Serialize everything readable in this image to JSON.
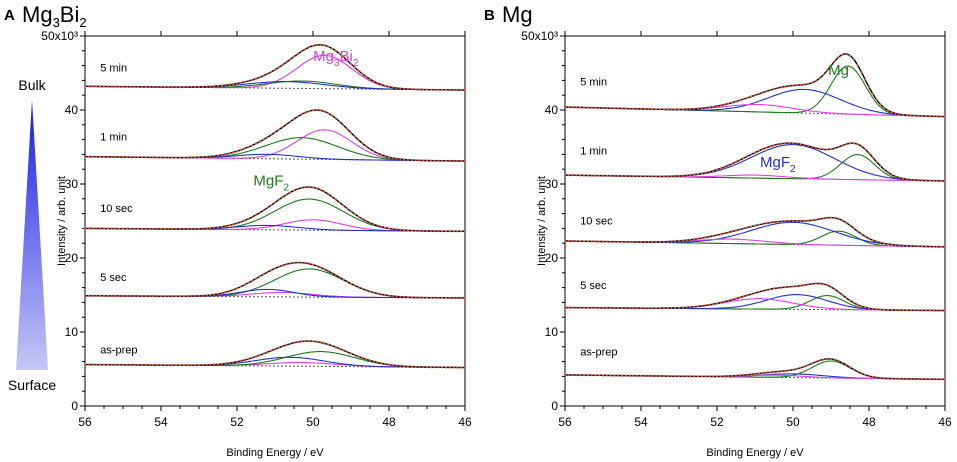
{
  "colors": {
    "data": "#d2553c",
    "envelope": "#000000",
    "mg3bi2": "#e040e0",
    "mgf2": "#1f7a1f",
    "blue": "#2233cc",
    "background": "#555555",
    "gradient_dark": "#1a1ae6",
    "gradient_light": "#c4c8f5"
  },
  "depth_indicator": {
    "top_label": "Bulk",
    "bottom_label": "Surface"
  },
  "chart_data": [
    {
      "type": "line",
      "panel_letter": "A",
      "title": "Mg3Bi2",
      "title_main": "Mg",
      "title_sub1": "3",
      "title_mid": "Bi",
      "title_sub2": "2",
      "xlabel": "Binding Energy / eV",
      "ylabel": "Intensity / arb. unit",
      "xlim": [
        56,
        46
      ],
      "ylim": [
        0,
        50
      ],
      "x_ticks": [
        "56",
        "54",
        "52",
        "50",
        "48",
        "46"
      ],
      "x_tick_values": [
        56,
        54,
        52,
        50,
        48,
        46
      ],
      "y_ticks": [
        "0",
        "10",
        "20",
        "30",
        "40",
        "50x10³"
      ],
      "y_tick_values": [
        0,
        10,
        20,
        30,
        40,
        50
      ],
      "annotations": [
        {
          "main": "Mg",
          "sub1": "3",
          "mid": "Bi",
          "sub2": "2",
          "color": "mg3bi2",
          "x": 49.4,
          "y": 46.6
        },
        {
          "main": "MgF",
          "sub1": "2",
          "mid": "",
          "sub2": "",
          "color": "mgf2",
          "x": 51.1,
          "y": 29.8
        }
      ],
      "traces": [
        {
          "label": "5 min",
          "label_x": 55.6,
          "label_y": 45.2,
          "bg_start": 43.2,
          "bg_end": 42.7,
          "components": [
            {
              "name": "Mg3Bi2",
              "color": "mg3bi2",
              "center": 49.7,
              "height": 4.5,
              "sigma": 0.72
            },
            {
              "name": "MgF2",
              "color": "mgf2",
              "center": 50.3,
              "height": 1.0,
              "sigma": 0.9
            },
            {
              "name": "blue",
              "color": "blue",
              "center": 50.7,
              "height": 0.9,
              "sigma": 1.0
            }
          ]
        },
        {
          "label": "1 min",
          "label_x": 55.6,
          "label_y": 35.9,
          "bg_start": 33.7,
          "bg_end": 33.1,
          "components": [
            {
              "name": "Mg3Bi2",
              "color": "mg3bi2",
              "center": 49.7,
              "height": 4.0,
              "sigma": 0.72
            },
            {
              "name": "MgF2",
              "color": "mgf2",
              "center": 50.3,
              "height": 2.9,
              "sigma": 0.95
            },
            {
              "name": "blue",
              "color": "blue",
              "center": 51.2,
              "height": 0.6,
              "sigma": 0.8
            }
          ]
        },
        {
          "label": "10 sec",
          "label_x": 55.6,
          "label_y": 26.2,
          "bg_start": 24.0,
          "bg_end": 23.6,
          "components": [
            {
              "name": "Mg3Bi2",
              "color": "mg3bi2",
              "center": 50.0,
              "height": 1.4,
              "sigma": 0.75
            },
            {
              "name": "MgF2",
              "color": "mgf2",
              "center": 50.1,
              "height": 4.2,
              "sigma": 0.9
            },
            {
              "name": "blue",
              "color": "blue",
              "center": 51.2,
              "height": 0.6,
              "sigma": 0.8
            }
          ]
        },
        {
          "label": "5 sec",
          "label_x": 55.6,
          "label_y": 16.9,
          "bg_start": 14.9,
          "bg_end": 14.6,
          "components": [
            {
              "name": "Mg3Bi2",
              "color": "mg3bi2",
              "center": 50.8,
              "height": 0.6,
              "sigma": 0.8
            },
            {
              "name": "MgF2",
              "color": "mgf2",
              "center": 50.1,
              "height": 3.8,
              "sigma": 0.9
            },
            {
              "name": "blue",
              "color": "blue",
              "center": 51.2,
              "height": 1.0,
              "sigma": 0.7
            }
          ]
        },
        {
          "label": "as-prep",
          "label_x": 55.6,
          "label_y": 7.1,
          "bg_start": 5.6,
          "bg_end": 5.2,
          "components": [
            {
              "name": "Mg3Bi2",
              "color": "mg3bi2",
              "center": 50.3,
              "height": 0.5,
              "sigma": 0.9
            },
            {
              "name": "MgF2",
              "color": "mgf2",
              "center": 49.8,
              "height": 2.0,
              "sigma": 0.9
            },
            {
              "name": "blue",
              "color": "blue",
              "center": 50.6,
              "height": 1.2,
              "sigma": 0.9
            }
          ]
        }
      ]
    },
    {
      "type": "line",
      "panel_letter": "B",
      "title": "Mg",
      "title_main": "Mg",
      "title_sub1": "",
      "title_mid": "",
      "title_sub2": "",
      "xlabel": "Binding Energy / eV",
      "ylabel": "Intensity / arb. unit",
      "xlim": [
        56,
        46
      ],
      "ylim": [
        0,
        50
      ],
      "x_ticks": [
        "56",
        "54",
        "52",
        "50",
        "48",
        "46"
      ],
      "x_tick_values": [
        56,
        54,
        52,
        50,
        48,
        46
      ],
      "y_ticks": [
        "0",
        "10",
        "20",
        "30",
        "40",
        "50x10³"
      ],
      "y_tick_values": [
        0,
        10,
        20,
        30,
        40,
        50
      ],
      "annotations": [
        {
          "main": "Mg",
          "sub1": "",
          "mid": "",
          "sub2": "",
          "color": "mgf2",
          "x": 48.8,
          "y": 44.7
        },
        {
          "main": "MgF",
          "sub1": "2",
          "mid": "",
          "sub2": "",
          "color": "blue",
          "x": 50.4,
          "y": 32.3
        }
      ],
      "traces": [
        {
          "label": "5 min",
          "label_x": 55.6,
          "label_y": 43.3,
          "bg_start": 40.4,
          "bg_end": 39.1,
          "components": [
            {
              "name": "Mg",
              "color": "mgf2",
              "center": 48.55,
              "height": 6.5,
              "sigma": 0.45
            },
            {
              "name": "MgF2",
              "color": "blue",
              "center": 49.7,
              "height": 3.2,
              "sigma": 0.95
            },
            {
              "name": "Mg3Bi2",
              "color": "mg3bi2",
              "center": 50.9,
              "height": 1.0,
              "sigma": 0.9
            }
          ]
        },
        {
          "label": "1 min",
          "label_x": 55.6,
          "label_y": 34.0,
          "bg_start": 31.2,
          "bg_end": 30.4,
          "components": [
            {
              "name": "Mg",
              "color": "mgf2",
              "center": 48.3,
              "height": 3.4,
              "sigma": 0.45
            },
            {
              "name": "MgF2",
              "color": "blue",
              "center": 50.0,
              "height": 4.6,
              "sigma": 1.1
            },
            {
              "name": "Mg3Bi2",
              "color": "mg3bi2",
              "center": 51.0,
              "height": 0.4,
              "sigma": 0.8
            }
          ]
        },
        {
          "label": "10 sec",
          "label_x": 55.6,
          "label_y": 24.5,
          "bg_start": 22.3,
          "bg_end": 21.5,
          "components": [
            {
              "name": "Mg",
              "color": "mgf2",
              "center": 48.8,
              "height": 1.9,
              "sigma": 0.45
            },
            {
              "name": "MgF2",
              "color": "blue",
              "center": 50.0,
              "height": 3.0,
              "sigma": 1.1
            },
            {
              "name": "Mg3Bi2",
              "color": "mg3bi2",
              "center": 51.6,
              "height": 0.6,
              "sigma": 0.9
            }
          ]
        },
        {
          "label": "5 sec",
          "label_x": 55.6,
          "label_y": 15.8,
          "bg_start": 13.3,
          "bg_end": 12.9,
          "components": [
            {
              "name": "Mg",
              "color": "mgf2",
              "center": 49.1,
              "height": 1.9,
              "sigma": 0.45
            },
            {
              "name": "MgF2",
              "color": "blue",
              "center": 49.9,
              "height": 2.0,
              "sigma": 0.8
            },
            {
              "name": "Mg3Bi2",
              "color": "mg3bi2",
              "center": 50.9,
              "height": 1.4,
              "sigma": 0.9
            }
          ]
        },
        {
          "label": "as-prep",
          "label_x": 55.6,
          "label_y": 6.8,
          "bg_start": 4.2,
          "bg_end": 3.6,
          "components": [
            {
              "name": "Mg",
              "color": "mgf2",
              "center": 49.0,
              "height": 2.3,
              "sigma": 0.5
            },
            {
              "name": "MgF2",
              "color": "blue",
              "center": 50.0,
              "height": 0.5,
              "sigma": 0.8
            },
            {
              "name": "Mg3Bi2",
              "color": "mg3bi2",
              "center": 50.4,
              "height": 0.3,
              "sigma": 0.7
            }
          ]
        }
      ]
    }
  ]
}
